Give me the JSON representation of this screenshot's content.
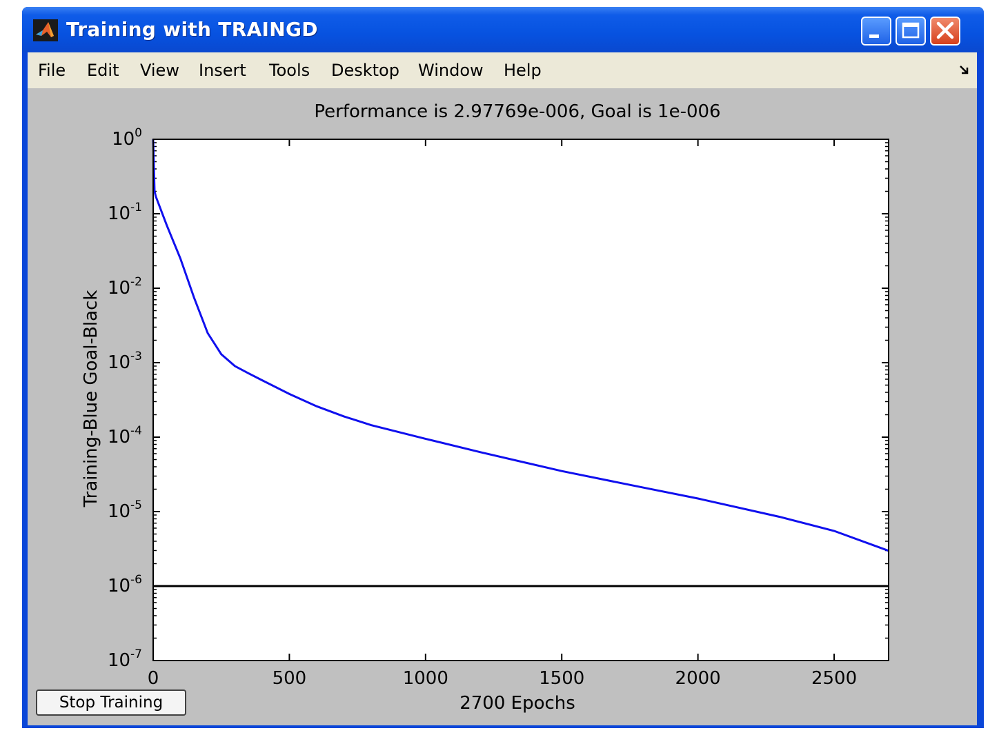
{
  "window": {
    "title": "Training with TRAINGD"
  },
  "menu": [
    "File",
    "Edit",
    "View",
    "Insert",
    "Tools",
    "Desktop",
    "Window",
    "Help"
  ],
  "buttons": {
    "stop_training": "Stop Training"
  },
  "colors": {
    "training_line": "#1010ee",
    "goal_line": "#000000",
    "figure_background": "#c0c0c0"
  },
  "chart_data": {
    "type": "line",
    "title": "Performance is 2.97769e-006, Goal is 1e-006",
    "xlabel": "2700 Epochs",
    "ylabel": "Training-Blue  Goal-Black",
    "yscale": "log",
    "xlim": [
      0,
      2700
    ],
    "ylim": [
      1e-07,
      1
    ],
    "x_ticks": [
      0,
      500,
      1000,
      1500,
      2000,
      2500
    ],
    "y_ticks": [
      {
        "base": "10",
        "exp": "0",
        "value": 1
      },
      {
        "base": "10",
        "exp": "-1",
        "value": 0.1
      },
      {
        "base": "10",
        "exp": "-2",
        "value": 0.01
      },
      {
        "base": "10",
        "exp": "-3",
        "value": 0.001
      },
      {
        "base": "10",
        "exp": "-4",
        "value": 0.0001
      },
      {
        "base": "10",
        "exp": "-5",
        "value": 1e-05
      },
      {
        "base": "10",
        "exp": "-6",
        "value": 1e-06
      },
      {
        "base": "10",
        "exp": "-7",
        "value": 1e-07
      }
    ],
    "grid": false,
    "series": [
      {
        "name": "Training",
        "color": "#1010ee",
        "x": [
          0,
          5,
          10,
          50,
          100,
          150,
          200,
          250,
          300,
          350,
          400,
          500,
          600,
          700,
          800,
          1000,
          1200,
          1500,
          1800,
          2000,
          2300,
          2500,
          2700
        ],
        "y": [
          1.0,
          0.2,
          0.17,
          0.07,
          0.025,
          0.0075,
          0.0025,
          0.0013,
          0.0009,
          0.00072,
          0.00058,
          0.00038,
          0.00026,
          0.00019,
          0.000145,
          9.5e-05,
          6.3e-05,
          3.5e-05,
          2.1e-05,
          1.5e-05,
          8.5e-06,
          5.5e-06,
          2.98e-06
        ]
      },
      {
        "name": "Goal",
        "color": "#000000",
        "x": [
          0,
          2700
        ],
        "y": [
          1e-06,
          1e-06
        ]
      }
    ]
  }
}
